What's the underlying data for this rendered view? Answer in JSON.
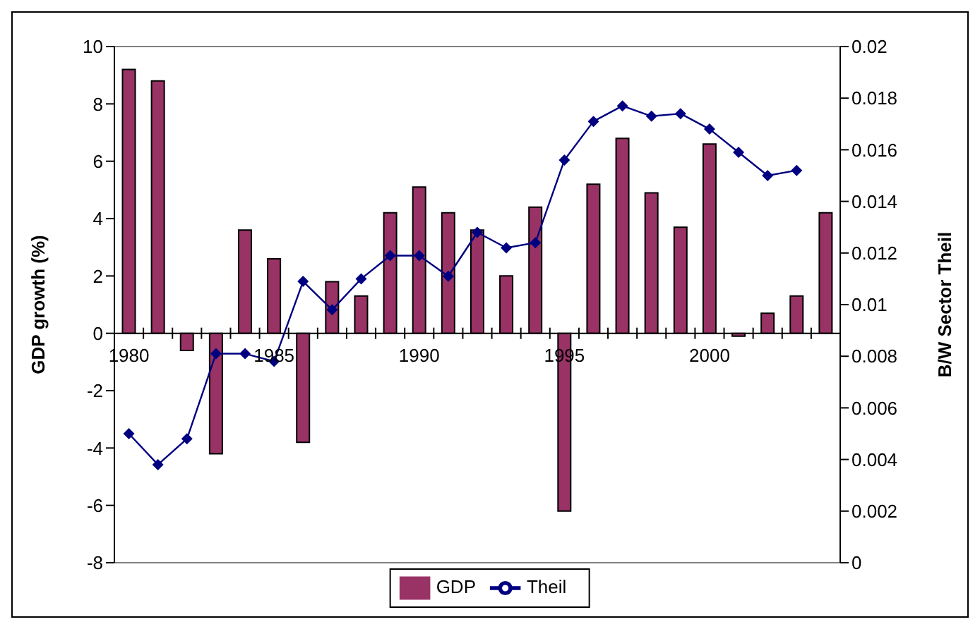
{
  "chart_data": {
    "type": "bar",
    "xlabel": null,
    "ylabel": "GDP growth (%)",
    "y2label": "B/W Sector Theil",
    "categories": [
      "1980",
      null,
      null,
      null,
      null,
      "1985",
      null,
      null,
      null,
      null,
      "1990",
      null,
      null,
      null,
      null,
      "1995",
      null,
      null,
      null,
      null,
      "2000",
      null,
      null,
      null,
      null
    ],
    "series": [
      {
        "name": "GDP",
        "color": "#993366",
        "values": [
          9.2,
          8.8,
          -0.6,
          -4.2,
          3.6,
          2.6,
          -3.8,
          1.8,
          1.3,
          4.2,
          5.1,
          4.2,
          3.6,
          2.0,
          4.4,
          -6.2,
          5.2,
          6.8,
          4.9,
          3.7,
          6.6,
          -0.1,
          0.7,
          1.3,
          4.2
        ]
      },
      {
        "name": "Theil",
        "type": "line",
        "axis": "y2",
        "color": "#000080",
        "marker": "diamond",
        "values": [
          0.005,
          0.0038,
          0.0048,
          0.0081,
          0.0081,
          0.0078,
          0.0109,
          0.0098,
          0.011,
          0.0119,
          0.0119,
          0.0111,
          0.0128,
          0.0122,
          0.0124,
          0.0156,
          0.0171,
          0.0177,
          0.0173,
          0.0174,
          0.0168,
          0.0159,
          0.015,
          0.0152,
          null
        ]
      }
    ],
    "ylim": [
      -8,
      10
    ],
    "yticks": [
      -8,
      -6,
      -4,
      -2,
      0,
      2,
      4,
      6,
      8,
      10
    ],
    "y2lim": [
      0,
      0.02
    ],
    "y2ticks": [
      0,
      0.002,
      0.004,
      0.006,
      0.008,
      0.01,
      0.012,
      0.014,
      0.016,
      0.018,
      0.02
    ],
    "legend": "bottom"
  }
}
